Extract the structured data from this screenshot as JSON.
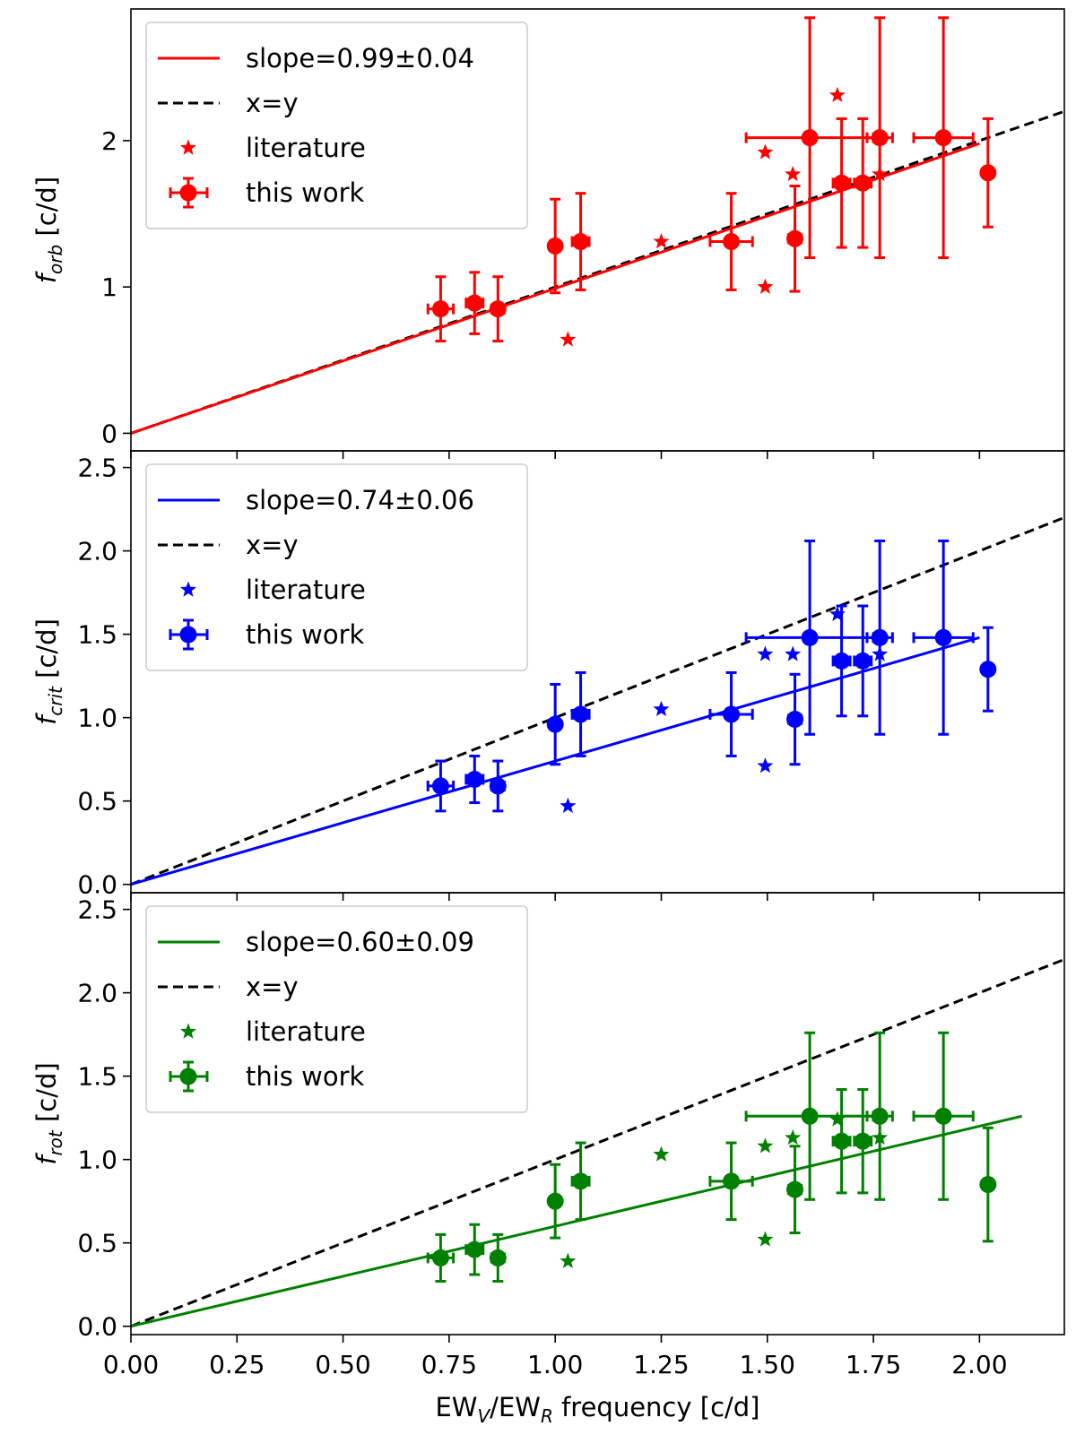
{
  "chart_data": {
    "type": "scatter",
    "shared_x": {
      "label_main": "EW",
      "label_sub1": "V",
      "label_mid": "/EW",
      "label_sub2": "R",
      "label_rest": " frequency [c/d]",
      "xlim": [
        0.0,
        2.2
      ],
      "ticks": [
        0.0,
        0.25,
        0.5,
        0.75,
        1.0,
        1.25,
        1.5,
        1.75,
        2.0
      ],
      "tick_labels": [
        "0.00",
        "0.25",
        "0.50",
        "0.75",
        "1.00",
        "1.25",
        "1.50",
        "1.75",
        "2.00"
      ]
    },
    "panels": [
      {
        "id": "orb",
        "color": "#ff0000",
        "ylabel_f": "f",
        "ylabel_sub": "orb",
        "ylabel_unit": " [c/d]",
        "ylim": [
          -0.12,
          2.9
        ],
        "yticks": [
          0,
          1,
          2
        ],
        "ytick_labels": [
          "0",
          "1",
          "2"
        ],
        "slope": 0.99,
        "fit_x": [
          0.0,
          2.0
        ],
        "legend": {
          "fit": "slope=0.99±0.04",
          "xy": "x=y",
          "lit": "literature",
          "work": "this work"
        },
        "this_work": [
          {
            "x": 0.73,
            "y": 0.85,
            "xerr": 0.03,
            "yerr": 0.22
          },
          {
            "x": 0.81,
            "y": 0.89,
            "xerr": 0.02,
            "yerr": 0.21
          },
          {
            "x": 0.865,
            "y": 0.85,
            "xerr": 0.015,
            "yerr": 0.22
          },
          {
            "x": 1.0,
            "y": 1.28,
            "xerr": 0.005,
            "yerr": 0.32
          },
          {
            "x": 1.06,
            "y": 1.31,
            "xerr": 0.02,
            "yerr": 0.33
          },
          {
            "x": 1.415,
            "y": 1.31,
            "xerr": 0.05,
            "yerr": 0.33
          },
          {
            "x": 1.565,
            "y": 1.33,
            "xerr": 0.015,
            "yerr": 0.36
          },
          {
            "x": 1.6,
            "y": 2.02,
            "xerr": 0.15,
            "yerr": 0.82
          },
          {
            "x": 1.675,
            "y": 1.71,
            "xerr": 0.02,
            "yerr": 0.44
          },
          {
            "x": 1.725,
            "y": 1.71,
            "xerr": 0.02,
            "yerr": 0.44
          },
          {
            "x": 1.765,
            "y": 2.02,
            "xerr": 0.03,
            "yerr": 0.82
          },
          {
            "x": 1.915,
            "y": 2.02,
            "xerr": 0.07,
            "yerr": 0.82
          },
          {
            "x": 2.02,
            "y": 1.78,
            "xerr": 0.0,
            "yerr": 0.37
          }
        ],
        "literature": [
          {
            "x": 1.03,
            "y": 0.64
          },
          {
            "x": 1.25,
            "y": 1.31
          },
          {
            "x": 1.495,
            "y": 1.0
          },
          {
            "x": 1.495,
            "y": 1.92
          },
          {
            "x": 1.56,
            "y": 1.77
          },
          {
            "x": 1.665,
            "y": 2.31
          },
          {
            "x": 1.765,
            "y": 1.77
          }
        ]
      },
      {
        "id": "crit",
        "color": "#0000ff",
        "ylabel_f": "f",
        "ylabel_sub": "crit",
        "ylabel_unit": " [c/d]",
        "ylim": [
          -0.05,
          2.6
        ],
        "yticks": [
          0.0,
          0.5,
          1.0,
          1.5,
          2.0,
          2.5
        ],
        "ytick_labels": [
          "0.0",
          "0.5",
          "1.0",
          "1.5",
          "2.0",
          "2.5"
        ],
        "slope": 0.74,
        "fit_x": [
          0.0,
          2.0
        ],
        "legend": {
          "fit": "slope=0.74±0.06",
          "xy": "x=y",
          "lit": "literature",
          "work": "this work"
        },
        "this_work": [
          {
            "x": 0.73,
            "y": 0.59,
            "xerr": 0.03,
            "yerr": 0.15
          },
          {
            "x": 0.81,
            "y": 0.63,
            "xerr": 0.02,
            "yerr": 0.14
          },
          {
            "x": 0.865,
            "y": 0.59,
            "xerr": 0.015,
            "yerr": 0.15
          },
          {
            "x": 1.0,
            "y": 0.96,
            "xerr": 0.005,
            "yerr": 0.24
          },
          {
            "x": 1.06,
            "y": 1.02,
            "xerr": 0.02,
            "yerr": 0.25
          },
          {
            "x": 1.415,
            "y": 1.02,
            "xerr": 0.05,
            "yerr": 0.25
          },
          {
            "x": 1.565,
            "y": 0.99,
            "xerr": 0.015,
            "yerr": 0.27
          },
          {
            "x": 1.6,
            "y": 1.48,
            "xerr": 0.15,
            "yerr": 0.58
          },
          {
            "x": 1.675,
            "y": 1.34,
            "xerr": 0.02,
            "yerr": 0.33
          },
          {
            "x": 1.725,
            "y": 1.34,
            "xerr": 0.02,
            "yerr": 0.33
          },
          {
            "x": 1.765,
            "y": 1.48,
            "xerr": 0.03,
            "yerr": 0.58
          },
          {
            "x": 1.915,
            "y": 1.48,
            "xerr": 0.07,
            "yerr": 0.58
          },
          {
            "x": 2.02,
            "y": 1.29,
            "xerr": 0.0,
            "yerr": 0.25
          }
        ],
        "literature": [
          {
            "x": 1.03,
            "y": 0.47
          },
          {
            "x": 1.25,
            "y": 1.05
          },
          {
            "x": 1.495,
            "y": 0.71
          },
          {
            "x": 1.495,
            "y": 1.38
          },
          {
            "x": 1.56,
            "y": 1.38
          },
          {
            "x": 1.665,
            "y": 1.62
          },
          {
            "x": 1.765,
            "y": 1.38
          }
        ]
      },
      {
        "id": "rot",
        "color": "#008000",
        "ylabel_f": "f",
        "ylabel_sub": "rot",
        "ylabel_unit": " [c/d]",
        "ylim": [
          -0.05,
          2.6
        ],
        "yticks": [
          0.0,
          0.5,
          1.0,
          1.5,
          2.0,
          2.5
        ],
        "ytick_labels": [
          "0.0",
          "0.5",
          "1.0",
          "1.5",
          "2.0",
          "2.5"
        ],
        "slope": 0.6,
        "fit_x": [
          0.0,
          2.1
        ],
        "legend": {
          "fit": "slope=0.60±0.09",
          "xy": "x=y",
          "lit": "literature",
          "work": "this work"
        },
        "this_work": [
          {
            "x": 0.73,
            "y": 0.41,
            "xerr": 0.03,
            "yerr": 0.14
          },
          {
            "x": 0.81,
            "y": 0.46,
            "xerr": 0.02,
            "yerr": 0.15
          },
          {
            "x": 0.865,
            "y": 0.41,
            "xerr": 0.015,
            "yerr": 0.14
          },
          {
            "x": 1.0,
            "y": 0.75,
            "xerr": 0.005,
            "yerr": 0.22
          },
          {
            "x": 1.06,
            "y": 0.87,
            "xerr": 0.02,
            "yerr": 0.23
          },
          {
            "x": 1.415,
            "y": 0.87,
            "xerr": 0.05,
            "yerr": 0.23
          },
          {
            "x": 1.565,
            "y": 0.82,
            "xerr": 0.015,
            "yerr": 0.26
          },
          {
            "x": 1.6,
            "y": 1.26,
            "xerr": 0.15,
            "yerr": 0.5
          },
          {
            "x": 1.675,
            "y": 1.11,
            "xerr": 0.02,
            "yerr": 0.31
          },
          {
            "x": 1.725,
            "y": 1.11,
            "xerr": 0.02,
            "yerr": 0.31
          },
          {
            "x": 1.765,
            "y": 1.26,
            "xerr": 0.03,
            "yerr": 0.5
          },
          {
            "x": 1.915,
            "y": 1.26,
            "xerr": 0.07,
            "yerr": 0.5
          },
          {
            "x": 2.02,
            "y": 0.85,
            "xerr": 0.0,
            "yerr": 0.34
          }
        ],
        "literature": [
          {
            "x": 1.03,
            "y": 0.39
          },
          {
            "x": 1.25,
            "y": 1.03
          },
          {
            "x": 1.495,
            "y": 0.52
          },
          {
            "x": 1.495,
            "y": 1.08
          },
          {
            "x": 1.56,
            "y": 1.13
          },
          {
            "x": 1.665,
            "y": 1.24
          },
          {
            "x": 1.765,
            "y": 1.13
          }
        ]
      }
    ]
  }
}
